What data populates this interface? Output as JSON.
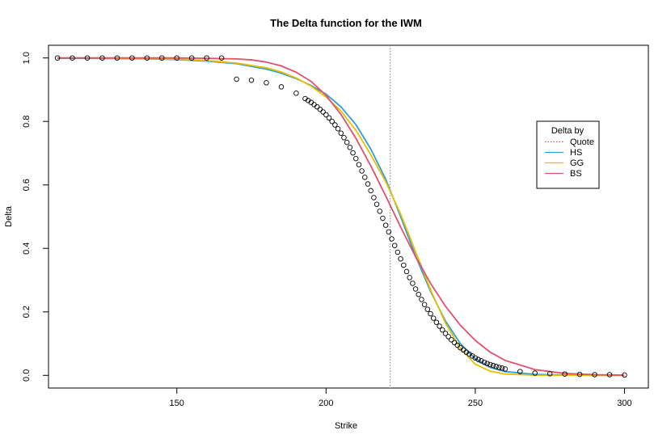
{
  "chart_data": {
    "type": "line",
    "title": "The Delta function for the IWM",
    "xlabel": "Strike",
    "ylabel": "Delta",
    "xlim": [
      107,
      308
    ],
    "ylim": [
      -0.04,
      1.04
    ],
    "x_ticks": [
      150,
      200,
      250,
      300
    ],
    "y_ticks": [
      0.0,
      0.2,
      0.4,
      0.6,
      0.8,
      1.0
    ],
    "x_tick_labels": [
      "150",
      "200",
      "250",
      "300"
    ],
    "y_tick_labels": [
      "0.0",
      "0.2",
      "0.4",
      "0.6",
      "0.8",
      "1.0"
    ],
    "grid": false,
    "vline": {
      "x": 221.5,
      "style": "dotted",
      "color": "#808080"
    },
    "legend": {
      "title": "Delta by",
      "placement": "right",
      "entries": [
        {
          "label": "Quote",
          "color": "#c0504d",
          "style": "dotted"
        },
        {
          "label": "HS",
          "color": "#2a9fd6",
          "style": "solid"
        },
        {
          "label": "GG",
          "color": "#e8c000",
          "style": "solid"
        },
        {
          "label": "BS",
          "color": "#e0506e",
          "style": "solid"
        }
      ]
    },
    "series": [
      {
        "name": "Quote",
        "kind": "points",
        "x": [
          110,
          115,
          120,
          125,
          130,
          135,
          140,
          145,
          150,
          155,
          160,
          165,
          170,
          175,
          180,
          185,
          190,
          193,
          194,
          195,
          196,
          197,
          198,
          199,
          200,
          201,
          202,
          203,
          204,
          205,
          206,
          207,
          208,
          209,
          210,
          211,
          212,
          213,
          214,
          215,
          216,
          217,
          218,
          219,
          220,
          221,
          222,
          223,
          224,
          225,
          226,
          227,
          228,
          229,
          230,
          231,
          232,
          233,
          234,
          235,
          236,
          237,
          238,
          239,
          240,
          241,
          242,
          243,
          244,
          245,
          246,
          247,
          248,
          249,
          250,
          251,
          252,
          253,
          254,
          255,
          256,
          257,
          258,
          259,
          260,
          265,
          270,
          275,
          280,
          285,
          290,
          295,
          300
        ],
        "y": [
          1.0,
          1.0,
          1.0,
          1.0,
          1.0,
          1.0,
          1.0,
          1.0,
          1.0,
          1.0,
          1.0,
          1.0,
          0.933,
          0.93,
          0.922,
          0.909,
          0.889,
          0.872,
          0.866,
          0.86,
          0.853,
          0.846,
          0.838,
          0.83,
          0.821,
          0.811,
          0.8,
          0.789,
          0.777,
          0.763,
          0.749,
          0.734,
          0.718,
          0.701,
          0.683,
          0.664,
          0.644,
          0.624,
          0.603,
          0.582,
          0.56,
          0.539,
          0.517,
          0.495,
          0.473,
          0.452,
          0.43,
          0.409,
          0.388,
          0.367,
          0.347,
          0.327,
          0.308,
          0.29,
          0.272,
          0.255,
          0.239,
          0.223,
          0.208,
          0.194,
          0.18,
          0.167,
          0.155,
          0.143,
          0.132,
          0.122,
          0.112,
          0.103,
          0.095,
          0.087,
          0.08,
          0.073,
          0.067,
          0.061,
          0.055,
          0.05,
          0.046,
          0.041,
          0.037,
          0.034,
          0.031,
          0.028,
          0.025,
          0.023,
          0.02,
          0.012,
          0.007,
          0.005,
          0.004,
          0.003,
          0.002,
          0.002,
          0.001
        ]
      },
      {
        "name": "HS",
        "kind": "line",
        "x": [
          110,
          120,
          130,
          140,
          150,
          160,
          170,
          180,
          185,
          190,
          195,
          200,
          205,
          210,
          215,
          220,
          225,
          230,
          235,
          240,
          245,
          250,
          255,
          260,
          270,
          280,
          290,
          300
        ],
        "y": [
          0.999,
          0.999,
          0.998,
          0.997,
          0.995,
          0.99,
          0.982,
          0.965,
          0.952,
          0.935,
          0.913,
          0.886,
          0.846,
          0.79,
          0.713,
          0.618,
          0.5,
          0.376,
          0.265,
          0.171,
          0.1,
          0.052,
          0.025,
          0.012,
          0.003,
          0.001,
          0.0003,
          0.0001
        ]
      },
      {
        "name": "GG",
        "kind": "line",
        "x": [
          110,
          120,
          130,
          140,
          150,
          160,
          170,
          180,
          185,
          190,
          195,
          200,
          205,
          210,
          215,
          220,
          225,
          230,
          235,
          240,
          245,
          250,
          255,
          260,
          270,
          280,
          290,
          300
        ],
        "y": [
          1.0,
          1.0,
          0.999,
          0.998,
          0.996,
          0.992,
          0.984,
          0.969,
          0.956,
          0.937,
          0.911,
          0.877,
          0.833,
          0.772,
          0.695,
          0.61,
          0.508,
          0.39,
          0.27,
          0.165,
          0.085,
          0.035,
          0.013,
          0.004,
          0.0005,
          0.0001,
          0.0,
          0.0
        ]
      },
      {
        "name": "BS",
        "kind": "line",
        "x": [
          110,
          120,
          130,
          140,
          150,
          160,
          170,
          175,
          180,
          185,
          190,
          195,
          200,
          205,
          210,
          215,
          220,
          225,
          230,
          235,
          240,
          245,
          250,
          255,
          260,
          270,
          280,
          290,
          300
        ],
        "y": [
          1.0,
          1.0,
          1.0,
          1.0,
          1.0,
          0.999,
          0.997,
          0.994,
          0.987,
          0.975,
          0.955,
          0.926,
          0.882,
          0.822,
          0.747,
          0.66,
          0.565,
          0.467,
          0.374,
          0.29,
          0.218,
          0.158,
          0.11,
          0.073,
          0.047,
          0.018,
          0.006,
          0.002,
          0.0005
        ]
      }
    ]
  }
}
